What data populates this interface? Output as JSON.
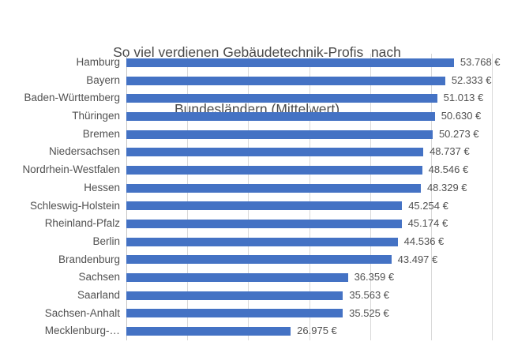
{
  "title": {
    "line1": "So viel verdienen Gebäudetechnik-Profis  nach",
    "line2": "Bundesländern (Mittelwert)"
  },
  "chart_data": {
    "type": "bar",
    "orientation": "horizontal",
    "title": "So viel verdienen Gebäudetechnik-Profis nach Bundesländern (Mittelwert)",
    "categories": [
      "Hamburg",
      "Bayern",
      "Baden-Württemberg",
      "Thüringen",
      "Bremen",
      "Niedersachsen",
      "Nordrhein-Westfalen",
      "Hessen",
      "Schleswig-Holstein",
      "Rheinland-Pfalz",
      "Berlin",
      "Brandenburg",
      "Sachsen",
      "Saarland",
      "Sachsen-Anhalt",
      "Mecklenburg-…"
    ],
    "values": [
      53768,
      52333,
      51013,
      50630,
      50273,
      48737,
      48546,
      48329,
      45254,
      45174,
      44536,
      43497,
      36359,
      35563,
      35525,
      26975
    ],
    "value_labels": [
      "53.768 €",
      "52.333 €",
      "51.013 €",
      "50.630 €",
      "50.273 €",
      "48.737 €",
      "48.546 €",
      "48.329 €",
      "45.254 €",
      "45.174 €",
      "44.536 €",
      "43.497 €",
      "36.359 €",
      "35.563 €",
      "35.525 €",
      "26.975 €"
    ],
    "xlabel": "",
    "ylabel": "",
    "xlim": [
      0,
      60000
    ],
    "gridline_step": 10000,
    "grid": true,
    "legend": "none",
    "bar_color": "#4472c4",
    "gridline_color": "#d9d9d9",
    "label_color": "#515151",
    "title_color": "#4a4a4a"
  }
}
